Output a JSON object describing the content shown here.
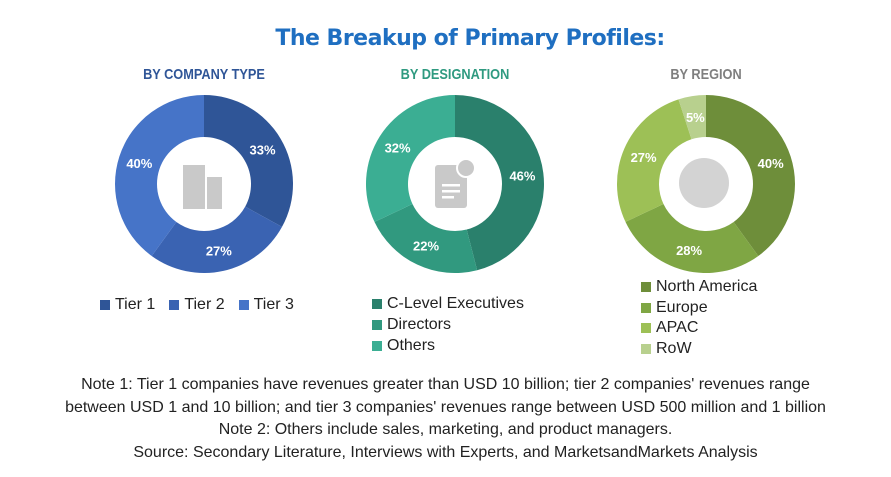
{
  "title": "The Breakup of Primary Profiles:",
  "chart_data": [
    {
      "type": "pie",
      "subtitle": "BY COMPANY TYPE",
      "donut": true,
      "categories": [
        "Tier 1",
        "Tier 2",
        "Tier 3"
      ],
      "values": [
        33,
        27,
        40
      ],
      "labels": [
        "33%",
        "27%",
        "40%"
      ],
      "colors": [
        "#2f5597",
        "#3a63b2",
        "#4674c8"
      ],
      "title_color": "#2f5597"
    },
    {
      "type": "pie",
      "subtitle": "BY DESIGNATION",
      "donut": true,
      "categories": [
        "C-Level Executives",
        "Directors",
        "Others"
      ],
      "values": [
        46,
        22,
        32
      ],
      "labels": [
        "46%",
        "22%",
        "32%"
      ],
      "colors": [
        "#2a806c",
        "#31997f",
        "#3bae93"
      ],
      "title_color": "#2f9a80"
    },
    {
      "type": "pie",
      "subtitle": "BY REGION",
      "donut": true,
      "categories": [
        "North America",
        "Europe",
        "APAC",
        "RoW"
      ],
      "values": [
        40,
        28,
        27,
        5
      ],
      "labels": [
        "40%",
        "28%",
        "27%",
        "5%"
      ],
      "colors": [
        "#6e8e3a",
        "#7fa644",
        "#9dc056",
        "#b8d08e"
      ],
      "title_color": "#7f7f7f"
    }
  ],
  "notes": [
    "Note 1: Tier 1 companies have revenues greater than USD 10 billion; tier 2 companies' revenues range",
    "between USD 1 and 10 billion; and tier 3 companies' revenues range between USD 500 million and 1 billion",
    "Note 2: Others include sales, marketing, and product managers.",
    "Source: Secondary Literature, Interviews with Experts, and MarketsandMarkets Analysis"
  ],
  "icons": [
    "building-icon",
    "document-icon",
    "globe-icon"
  ]
}
